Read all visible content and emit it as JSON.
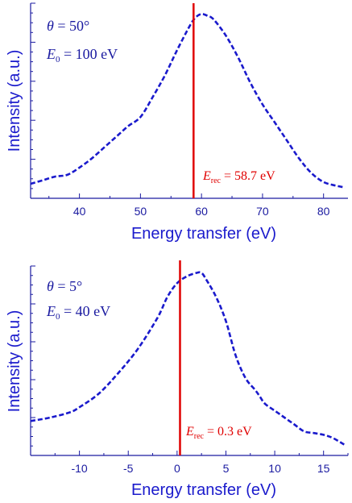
{
  "chart_data": [
    {
      "type": "line",
      "xlabel": "Energy transfer (eV)",
      "ylabel": "Intensity (a.u.)",
      "xlim": [
        32,
        84
      ],
      "ylim": [
        0,
        1.08
      ],
      "xticks": [
        40,
        50,
        60,
        70,
        80
      ],
      "annotations": {
        "theta_symbol": "θ",
        "theta_value": " = 50°",
        "e0_symbol": "E",
        "e0_sub": "0",
        "e0_value": " = 100  eV",
        "erec_symbol": "E",
        "erec_sub": "rec",
        "erec_value": " = 58.7 eV"
      },
      "vline_x": 58.7,
      "series": [
        {
          "x": [
            32,
            34,
            36,
            38,
            40,
            42,
            44,
            46,
            48,
            50,
            52,
            54,
            56,
            58,
            59,
            60,
            61,
            62,
            64,
            66,
            68,
            70,
            72,
            74,
            76,
            78,
            80,
            82,
            83.5
          ],
          "y": [
            0.08,
            0.1,
            0.12,
            0.13,
            0.17,
            0.22,
            0.28,
            0.34,
            0.4,
            0.45,
            0.56,
            0.68,
            0.82,
            0.95,
            1.0,
            1.02,
            1.01,
            0.99,
            0.9,
            0.78,
            0.64,
            0.52,
            0.42,
            0.32,
            0.22,
            0.14,
            0.09,
            0.07,
            0.06
          ]
        }
      ]
    },
    {
      "type": "line",
      "xlabel": "Energy transfer (eV)",
      "ylabel": "Intensity (a.u.)",
      "xlim": [
        -15,
        17.5
      ],
      "ylim": [
        0,
        1.1
      ],
      "xticks": [
        -10,
        -5,
        0,
        5,
        10,
        15
      ],
      "annotations": {
        "theta_symbol": "θ",
        "theta_value": " = 5°",
        "e0_symbol": "E",
        "e0_sub": "0",
        "e0_value": " = 40  eV",
        "erec_symbol": "E",
        "erec_sub": "rec",
        "erec_value": " = 0.3 eV"
      },
      "vline_x": 0.3,
      "series": [
        {
          "x": [
            -15,
            -13,
            -11,
            -10,
            -8,
            -6,
            -4,
            -2,
            -1,
            0,
            1,
            2,
            2.5,
            3,
            4,
            5,
            6,
            7,
            8,
            8.5,
            9,
            10,
            11,
            12,
            13,
            14,
            15,
            16,
            17.2
          ],
          "y": [
            0.2,
            0.22,
            0.25,
            0.28,
            0.36,
            0.48,
            0.62,
            0.8,
            0.92,
            1.0,
            1.04,
            1.06,
            1.06,
            1.02,
            0.92,
            0.78,
            0.58,
            0.45,
            0.38,
            0.34,
            0.3,
            0.26,
            0.22,
            0.18,
            0.14,
            0.13,
            0.12,
            0.1,
            0.06
          ]
        }
      ]
    }
  ]
}
